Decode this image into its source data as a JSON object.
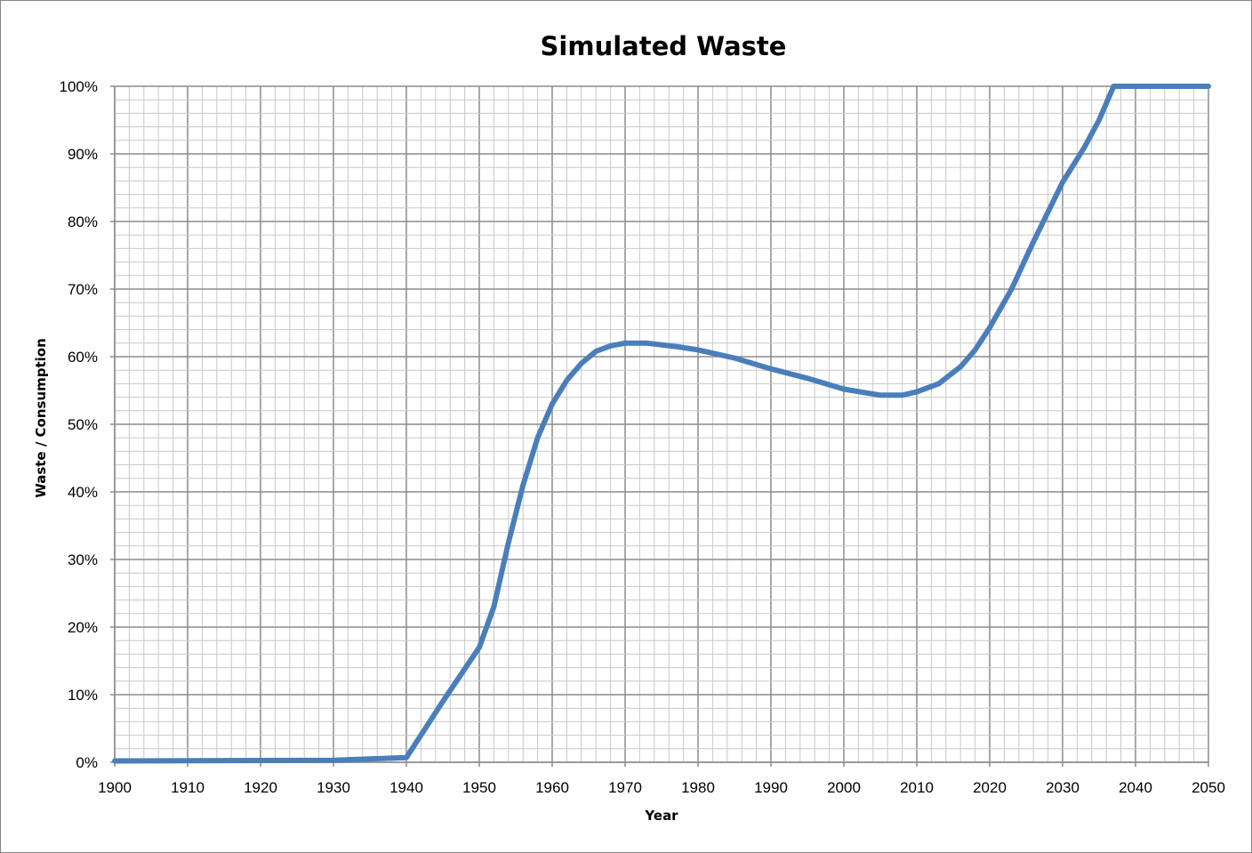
{
  "chart_data": {
    "type": "line",
    "title": "Simulated Waste",
    "xlabel": "Year",
    "ylabel": "Waste / Consumption",
    "xlim": [
      1900,
      2050
    ],
    "ylim": [
      0,
      100
    ],
    "x_ticks": [
      "1900",
      "1910",
      "1920",
      "1930",
      "1940",
      "1950",
      "1960",
      "1970",
      "1980",
      "1990",
      "2000",
      "2010",
      "2020",
      "2030",
      "2040",
      "2050"
    ],
    "y_ticks": [
      "0%",
      "10%",
      "20%",
      "30%",
      "40%",
      "50%",
      "60%",
      "70%",
      "80%",
      "90%",
      "100%"
    ],
    "grid": true,
    "minor_grid": true,
    "legend": "none",
    "line_color": "#4a7ebb",
    "series": [
      {
        "x": [
          1900,
          1930,
          1940,
          1945,
          1950,
          1952,
          1954,
          1956,
          1958,
          1960,
          1962,
          1964,
          1966,
          1968,
          1970,
          1973,
          1977,
          1980,
          1985,
          1990,
          1995,
          2000,
          2005,
          2008,
          2010,
          2013,
          2016,
          2018,
          2020,
          2023,
          2026,
          2030,
          2033,
          2035,
          2037,
          2050
        ],
        "y": [
          0.2,
          0.3,
          0.7,
          9,
          17,
          23,
          32.5,
          41,
          48,
          53,
          56.5,
          59,
          60.8,
          61.6,
          62,
          62,
          61.5,
          61,
          59.8,
          58.2,
          56.8,
          55.2,
          54.3,
          54.3,
          54.8,
          56,
          58.5,
          61,
          64.3,
          70,
          77,
          85.8,
          91,
          95,
          100,
          100
        ]
      }
    ]
  }
}
